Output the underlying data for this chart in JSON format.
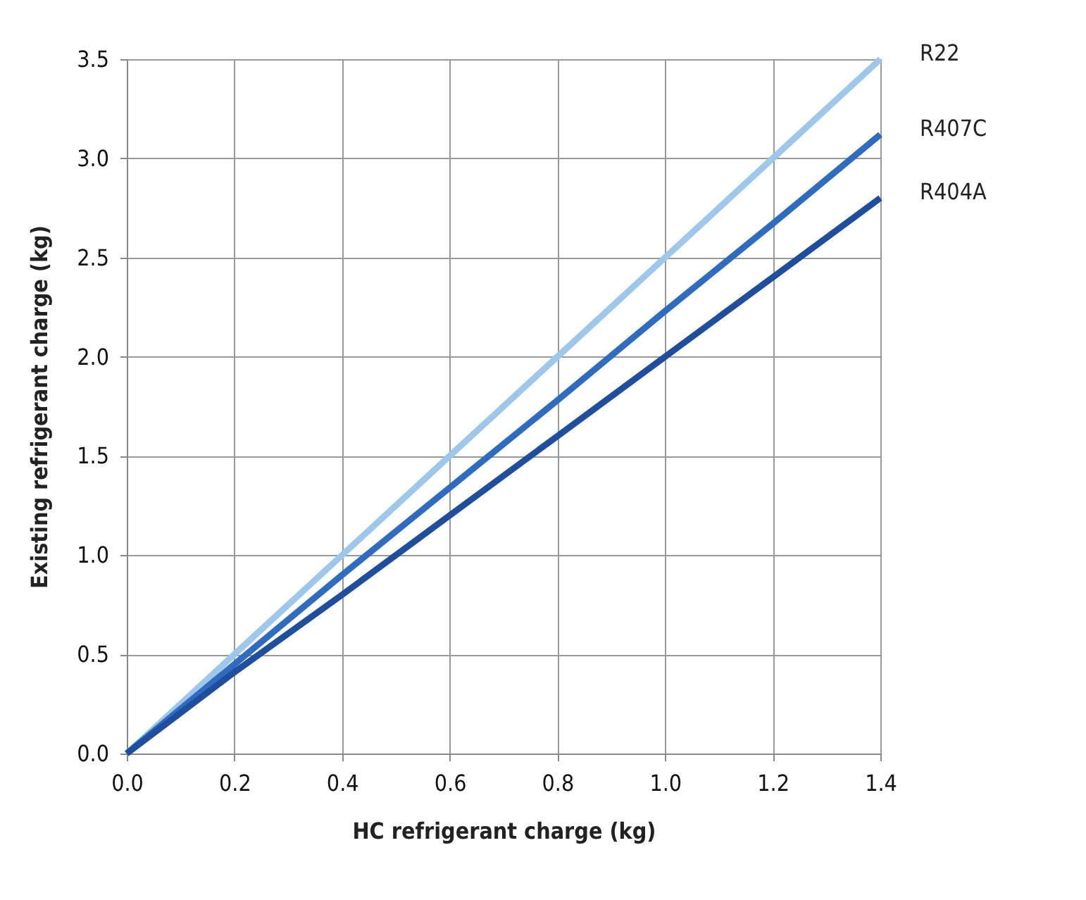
{
  "chart_data": {
    "type": "line",
    "xlabel": "HC refrigerant charge (kg)",
    "ylabel": "Existing refrigerant charge (kg)",
    "x": [
      0,
      0.2,
      0.4,
      0.6,
      0.8,
      1.0,
      1.2,
      1.4
    ],
    "series": [
      {
        "name": "R22",
        "color": "#9dc8ec",
        "values": [
          0,
          0.5,
          1.0,
          1.5,
          2.0,
          2.5,
          3.0,
          3.5
        ]
      },
      {
        "name": "R407C",
        "color": "#2f6bbf",
        "values": [
          0,
          0.45,
          0.9,
          1.34,
          1.78,
          2.23,
          2.67,
          3.12
        ]
      },
      {
        "name": "R404A",
        "color": "#1f4e9c",
        "values": [
          0,
          0.41,
          0.8,
          1.2,
          1.6,
          2.0,
          2.4,
          2.8
        ]
      }
    ],
    "xlim": [
      0,
      1.4
    ],
    "xticks": [
      {
        "value": 0,
        "label": "0.0"
      },
      0.2,
      0.4,
      0.6,
      0.8,
      {
        "value": 1,
        "label": "1.0"
      },
      1.2,
      1.4
    ],
    "ylim": [
      0,
      3.5
    ],
    "yticks": [
      {
        "value": 0,
        "label": "0.0"
      },
      0.5,
      {
        "value": 1,
        "label": "1.0"
      },
      1.5,
      {
        "value": 2,
        "label": "2.0"
      },
      2.5,
      {
        "value": 3,
        "label": "3.0"
      },
      3.5
    ],
    "grid": true,
    "legend": false,
    "marker": "none",
    "line_style": "solid"
  }
}
